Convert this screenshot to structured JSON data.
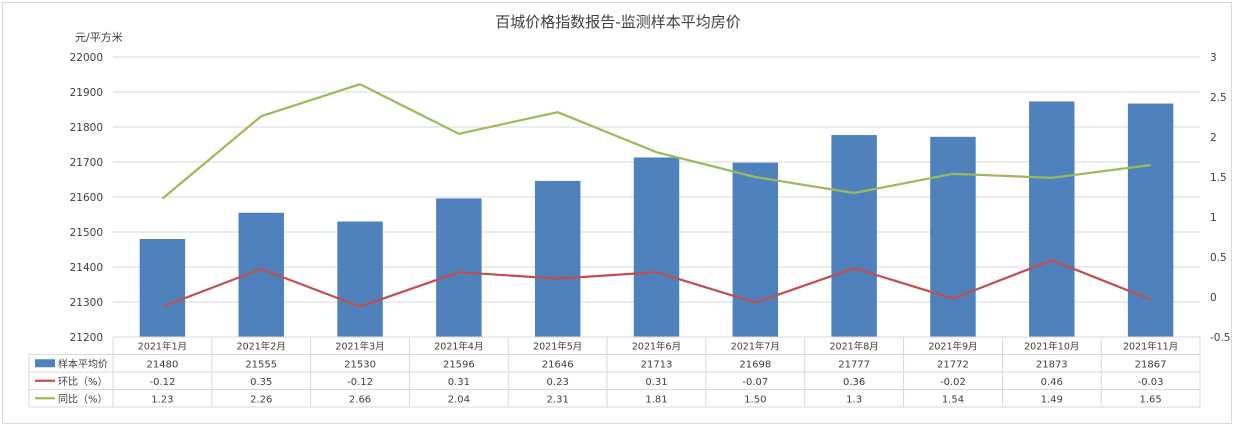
{
  "chart_data": {
    "type": "bar",
    "title": "百城价格指数报告-监测样本平均房价",
    "ylabel": "元/平方米",
    "categories": [
      "2021年1月",
      "2021年2月",
      "2021年3月",
      "2021年4月",
      "2021年5月",
      "2021年6月",
      "2021年7月",
      "2021年8月",
      "2021年9月",
      "2021年10月",
      "2021年11月"
    ],
    "ylim": [
      21200,
      22000
    ],
    "yticks": [
      "21200",
      "21300",
      "21400",
      "21500",
      "21600",
      "21700",
      "21800",
      "21900",
      "22000"
    ],
    "y2lim": [
      -0.5,
      3
    ],
    "y2ticks": [
      "-0.5",
      "0",
      "0.5",
      "1",
      "1.5",
      "2",
      "2.5",
      "3"
    ],
    "grid": true,
    "legend": "data-table",
    "series": [
      {
        "name": "样本平均价",
        "type": "bar",
        "axis": "left",
        "color": "#4f81bd",
        "values": [
          21480,
          21555,
          21530,
          21596,
          21646,
          21713,
          21698,
          21777,
          21772,
          21873,
          21867
        ],
        "labels": [
          "21480",
          "21555",
          "21530",
          "21596",
          "21646",
          "21713",
          "21698",
          "21777",
          "21772",
          "21873",
          "21867"
        ]
      },
      {
        "name": "环比（%）",
        "type": "line",
        "axis": "right",
        "color": "#c0504d",
        "values": [
          -0.12,
          0.35,
          -0.12,
          0.31,
          0.23,
          0.31,
          -0.07,
          0.36,
          -0.02,
          0.46,
          -0.03
        ],
        "labels": [
          "-0.12",
          "0.35",
          "-0.12",
          "0.31",
          "0.23",
          "0.31",
          "-0.07",
          "0.36",
          "-0.02",
          "0.46",
          "-0.03"
        ]
      },
      {
        "name": "同比（%）",
        "type": "line",
        "axis": "right",
        "color": "#9bbb59",
        "values": [
          1.23,
          2.26,
          2.66,
          2.04,
          2.31,
          1.81,
          1.5,
          1.3,
          1.54,
          1.49,
          1.65
        ],
        "labels": [
          "1.23",
          "2.26",
          "2.66",
          "2.04",
          "2.31",
          "1.81",
          "1.50",
          "1.3",
          "1.54",
          "1.49",
          "1.65"
        ]
      }
    ]
  }
}
